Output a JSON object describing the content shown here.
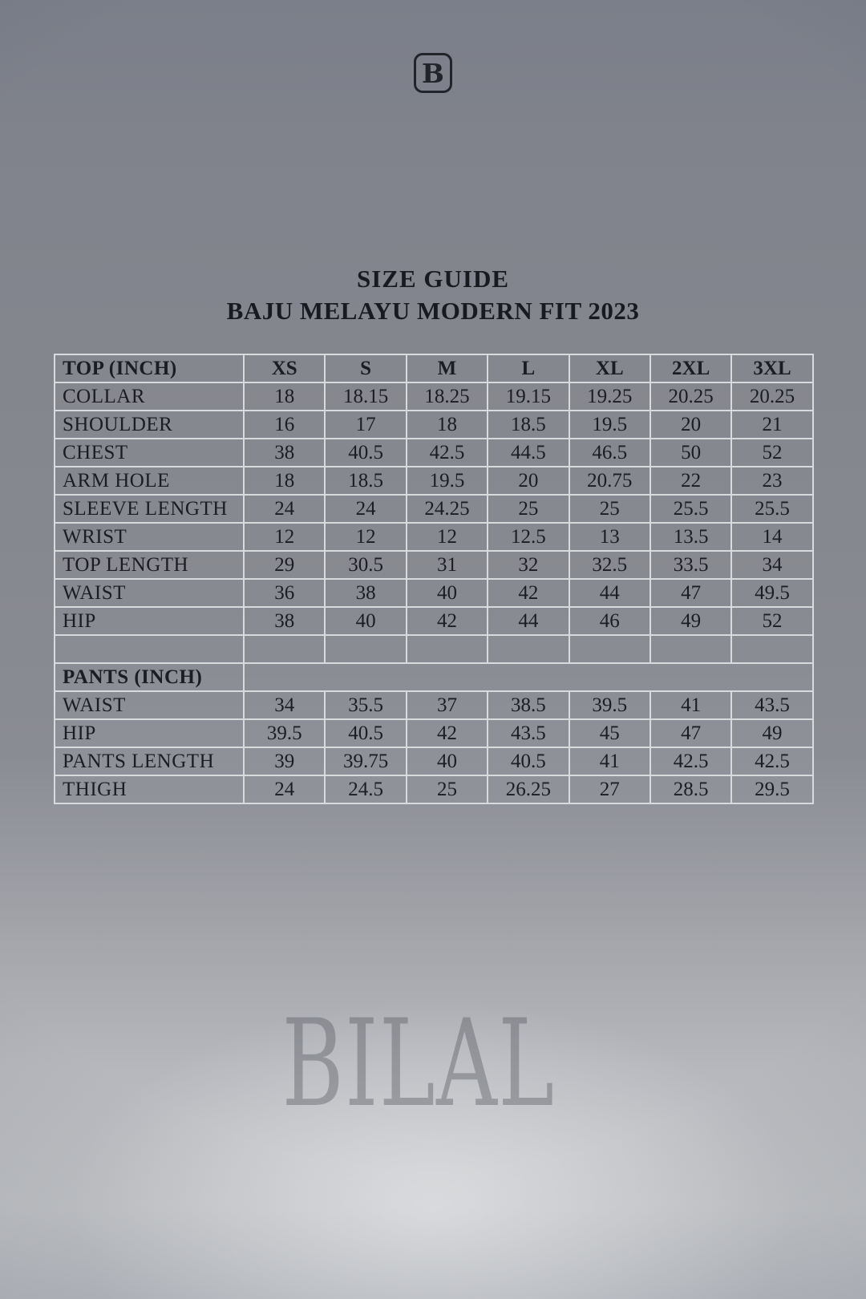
{
  "brand": {
    "logo_letter": "B",
    "watermark": "BILAL"
  },
  "title": {
    "line1": "SIZE GUIDE",
    "line2": "BAJU MELAYU MODERN FIT 2023"
  },
  "table": {
    "header": {
      "label": "TOP (INCH)",
      "sizes": [
        "XS",
        "S",
        "M",
        "L",
        "XL",
        "2XL",
        "3XL"
      ]
    },
    "top_rows": [
      {
        "label": "COLLAR",
        "values": [
          "18",
          "18.15",
          "18.25",
          "19.15",
          "19.25",
          "20.25",
          "20.25"
        ]
      },
      {
        "label": "SHOULDER",
        "values": [
          "16",
          "17",
          "18",
          "18.5",
          "19.5",
          "20",
          "21"
        ]
      },
      {
        "label": "CHEST",
        "values": [
          "38",
          "40.5",
          "42.5",
          "44.5",
          "46.5",
          "50",
          "52"
        ]
      },
      {
        "label": "ARM HOLE",
        "values": [
          "18",
          "18.5",
          "19.5",
          "20",
          "20.75",
          "22",
          "23"
        ]
      },
      {
        "label": "SLEEVE LENGTH",
        "values": [
          "24",
          "24",
          "24.25",
          "25",
          "25",
          "25.5",
          "25.5"
        ]
      },
      {
        "label": "WRIST",
        "values": [
          "12",
          "12",
          "12",
          "12.5",
          "13",
          "13.5",
          "14"
        ]
      },
      {
        "label": "TOP LENGTH",
        "values": [
          "29",
          "30.5",
          "31",
          "32",
          "32.5",
          "33.5",
          "34"
        ]
      },
      {
        "label": "WAIST",
        "values": [
          "36",
          "38",
          "40",
          "42",
          "44",
          "47",
          "49.5"
        ]
      },
      {
        "label": "HIP",
        "values": [
          "38",
          "40",
          "42",
          "44",
          "46",
          "49",
          "52"
        ]
      }
    ],
    "pants_header": "PANTS (INCH)",
    "pants_rows": [
      {
        "label": "WAIST",
        "values": [
          "34",
          "35.5",
          "37",
          "38.5",
          "39.5",
          "41",
          "43.5"
        ]
      },
      {
        "label": "HIP",
        "values": [
          "39.5",
          "40.5",
          "42",
          "43.5",
          "45",
          "47",
          "49"
        ]
      },
      {
        "label": "PANTS LENGTH",
        "values": [
          "39",
          "39.75",
          "40",
          "40.5",
          "41",
          "42.5",
          "42.5"
        ]
      },
      {
        "label": "THIGH",
        "values": [
          "24",
          "24.5",
          "25",
          "26.25",
          "27",
          "28.5",
          "29.5"
        ]
      }
    ]
  },
  "colors": {
    "backdrop_top": "#7b7f89",
    "backdrop_bottom": "#bcbec3",
    "table_cell": "#87898f",
    "table_border": "#d9dadc",
    "text": "#1b1d23",
    "watermark": "#95979c"
  }
}
